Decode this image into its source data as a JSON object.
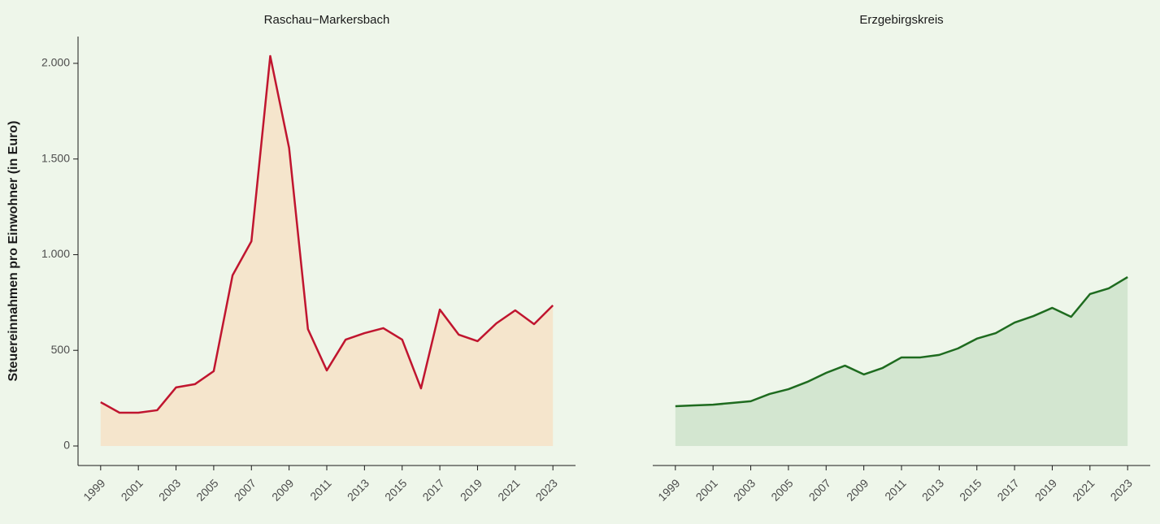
{
  "chart_data": [
    {
      "type": "area",
      "title": "Raschau−Markersbach",
      "ylabel": "Steuereinnahmen pro Einwohner (in Euro)",
      "x": [
        1999,
        2000,
        2001,
        2002,
        2003,
        2004,
        2005,
        2006,
        2007,
        2008,
        2009,
        2010,
        2011,
        2012,
        2013,
        2014,
        2015,
        2016,
        2017,
        2018,
        2019,
        2020,
        2021,
        2022,
        2023
      ],
      "values": [
        229,
        174,
        174,
        187,
        306,
        323,
        391,
        892,
        1070,
        2038,
        1558,
        611,
        395,
        556,
        590,
        616,
        556,
        301,
        713,
        582,
        548,
        641,
        709,
        637,
        735
      ],
      "color": "#c0152f",
      "fill": "#f5e5cc",
      "xlim": [
        1997.8,
        2024.2
      ],
      "xticks": [
        1999,
        2001,
        2003,
        2005,
        2007,
        2009,
        2011,
        2013,
        2015,
        2017,
        2019,
        2021,
        2023
      ],
      "ylim": [
        -102,
        2140
      ],
      "yticks": [
        0,
        500,
        {
          "value": 1000,
          "label": "1.000"
        },
        {
          "value": 1500,
          "label": "1.500"
        },
        {
          "value": 2000,
          "label": "2.000"
        }
      ]
    },
    {
      "type": "area",
      "title": "Erzgebirgskreis",
      "x": [
        1999,
        2000,
        2001,
        2002,
        2003,
        2004,
        2005,
        2006,
        2007,
        2008,
        2009,
        2010,
        2011,
        2012,
        2013,
        2014,
        2015,
        2016,
        2017,
        2018,
        2019,
        2020,
        2021,
        2022,
        2023
      ],
      "values": [
        208,
        212,
        216,
        225,
        234,
        272,
        297,
        335,
        382,
        420,
        374,
        408,
        463,
        463,
        476,
        510,
        561,
        590,
        645,
        679,
        722,
        675,
        794,
        824,
        883
      ],
      "color": "#1e6b1f",
      "fill": "#d3e6d0",
      "xlim": [
        1997.8,
        2024.2
      ],
      "xticks": [
        1999,
        2001,
        2003,
        2005,
        2007,
        2009,
        2011,
        2013,
        2015,
        2017,
        2019,
        2021,
        2023
      ],
      "ylim": [
        -102,
        2140
      ]
    }
  ]
}
